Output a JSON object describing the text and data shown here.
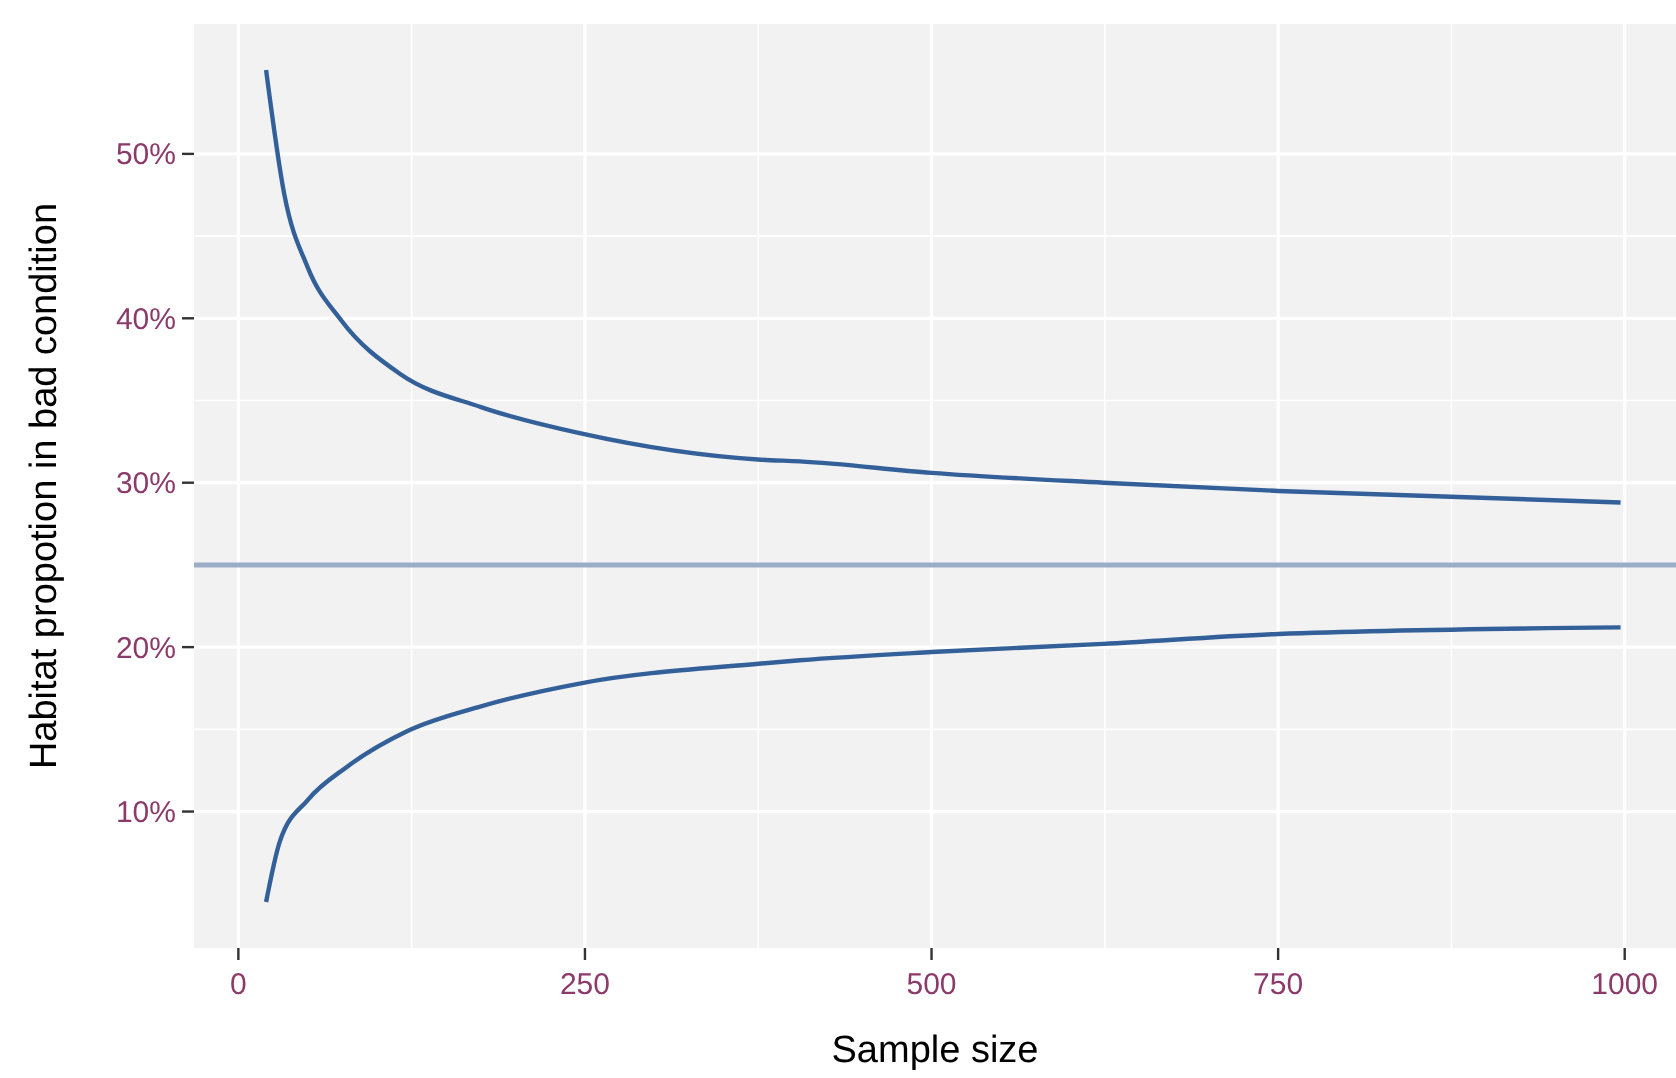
{
  "chart_data": {
    "type": "line",
    "xlabel": "Sample size",
    "ylabel": "Habitat propotion in bad condition",
    "xlim": [
      -32,
      1037
    ],
    "ylim": [
      1.7,
      57.9
    ],
    "xticks": [
      0,
      250,
      500,
      750,
      1000
    ],
    "yticks": [
      {
        "value": 10,
        "label": "10%"
      },
      {
        "value": 20,
        "label": "20%"
      },
      {
        "value": 30,
        "label": "30%"
      },
      {
        "value": 40,
        "label": "40%"
      },
      {
        "value": 50,
        "label": "50%"
      }
    ],
    "grid": true,
    "line_style": "solid",
    "marker": "none",
    "series": [
      {
        "color": "#34609a",
        "x": [
          20,
          33,
          50,
          74,
          117,
          175,
          247,
          377,
          405,
          500,
          624,
          750,
          997
        ],
        "values": [
          55.1,
          47.6,
          43.1,
          39.9,
          36.6,
          34.6,
          33.0,
          31.4,
          31.3,
          30.6,
          30.0,
          29.5,
          28.8
        ]
      },
      {
        "color": "#34609a",
        "x": [
          20,
          30,
          50,
          78,
          122,
          175,
          247,
          377,
          405,
          500,
          624,
          750,
          997
        ],
        "values": [
          4.5,
          8.2,
          10.7,
          12.7,
          14.9,
          16.4,
          17.8,
          19.0,
          19.2,
          19.7,
          20.2,
          20.8,
          21.2
        ]
      }
    ],
    "ref_lines": [
      {
        "axis": "y",
        "value": 25,
        "color": "#9aaec8"
      }
    ]
  }
}
